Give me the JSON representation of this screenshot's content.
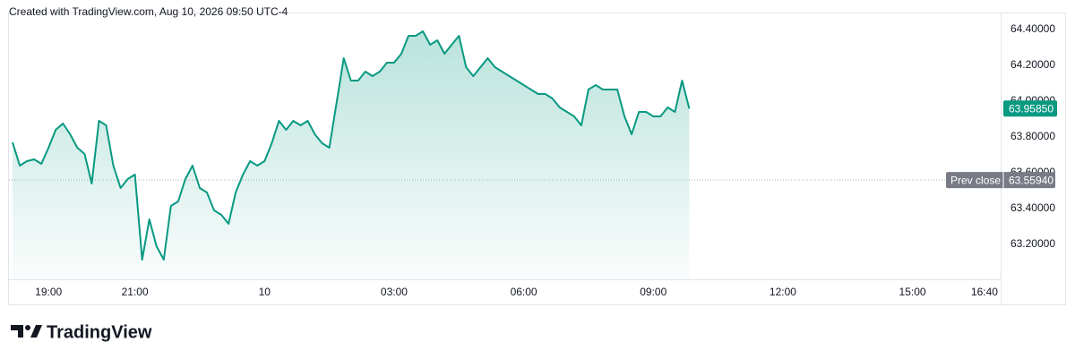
{
  "chart_data": {
    "type": "area",
    "title": "Created with TradingView.com, Aug 10, 2026 09:50 UTC-4",
    "brand": "TradingView",
    "color": "#089981",
    "x": [
      "18:10",
      "18:20",
      "18:30",
      "18:40",
      "18:50",
      "19:00",
      "19:10",
      "19:20",
      "19:30",
      "19:40",
      "19:50",
      "20:00",
      "20:10",
      "20:20",
      "20:30",
      "20:40",
      "20:50",
      "21:00",
      "21:10",
      "21:20",
      "21:30",
      "21:40",
      "21:50",
      "22:00",
      "22:10",
      "22:20",
      "22:30",
      "22:40",
      "22:50",
      "23:00",
      "23:10",
      "23:20",
      "23:30",
      "23:40",
      "23:50",
      "00:00",
      "00:10",
      "00:20",
      "00:30",
      "00:40",
      "00:50",
      "01:00",
      "01:10",
      "01:20",
      "01:30",
      "01:40",
      "01:50",
      "02:00",
      "02:10",
      "02:20",
      "02:30",
      "02:40",
      "02:50",
      "03:00",
      "03:10",
      "03:20",
      "03:30",
      "03:40",
      "03:50",
      "04:00",
      "04:10",
      "04:20",
      "04:30",
      "04:40",
      "04:50",
      "05:00",
      "05:10",
      "05:20",
      "05:30",
      "05:40",
      "05:50",
      "06:00",
      "06:10",
      "06:20",
      "06:30",
      "06:40",
      "06:50",
      "07:00",
      "07:10",
      "07:20",
      "07:30",
      "07:40",
      "07:50",
      "08:00",
      "08:10",
      "08:20",
      "08:30",
      "08:40",
      "08:50",
      "09:00",
      "09:10",
      "09:20",
      "09:30",
      "09:40",
      "09:50"
    ],
    "values": [
      63.77,
      63.64,
      63.665,
      63.675,
      63.65,
      63.74,
      63.84,
      63.875,
      63.815,
      63.74,
      63.705,
      63.54,
      63.89,
      63.865,
      63.64,
      63.515,
      63.565,
      63.59,
      63.115,
      63.34,
      63.19,
      63.115,
      63.415,
      63.44,
      63.565,
      63.64,
      63.515,
      63.49,
      63.39,
      63.365,
      63.315,
      63.49,
      63.59,
      63.665,
      63.64,
      63.665,
      63.765,
      63.89,
      63.84,
      63.89,
      63.865,
      63.89,
      63.815,
      63.765,
      63.74,
      63.99,
      64.24,
      64.115,
      64.115,
      64.165,
      64.14,
      64.165,
      64.215,
      64.215,
      64.265,
      64.365,
      64.365,
      64.39,
      64.315,
      64.34,
      64.265,
      64.315,
      64.365,
      64.19,
      64.14,
      64.19,
      64.24,
      64.19,
      64.165,
      64.14,
      64.115,
      64.09,
      64.065,
      64.04,
      64.04,
      64.015,
      63.965,
      63.94,
      63.915,
      63.865,
      64.065,
      64.09,
      64.065,
      64.065,
      64.065,
      63.915,
      63.815,
      63.94,
      63.94,
      63.915,
      63.915,
      63.965,
      63.94,
      64.115,
      63.9585
    ],
    "last_price": {
      "value": 63.9585,
      "label": "63.95850"
    },
    "prev_close": {
      "name": "Prev close",
      "value": 63.5594,
      "label": "63.55940"
    },
    "xlim": [
      "18:05",
      "17:00"
    ],
    "xticks": [
      "19:00",
      "21:00",
      {
        "value": "00:00",
        "label": "10"
      },
      "03:00",
      "06:00",
      "09:00",
      "12:00",
      "15:00",
      "16:40"
    ],
    "ylim": [
      63.005,
      64.49
    ],
    "yticks": [
      {
        "value": 63.2,
        "label": "63.20000"
      },
      {
        "value": 63.4,
        "label": "63.40000"
      },
      {
        "value": 63.6,
        "label": "63.60000"
      },
      {
        "value": 63.8,
        "label": "63.80000"
      },
      {
        "value": 64.0,
        "label": "64.00000"
      },
      {
        "value": 64.2,
        "label": "64.20000"
      },
      {
        "value": 64.4,
        "label": "64.40000"
      }
    ]
  }
}
